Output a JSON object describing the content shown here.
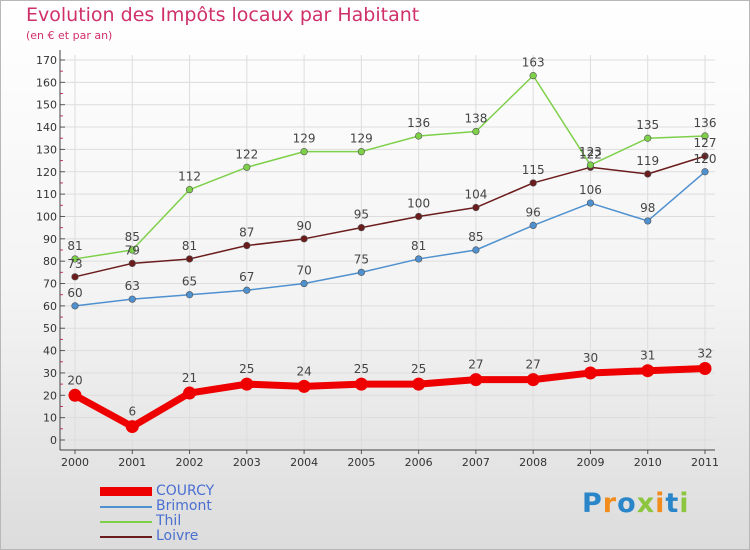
{
  "chart_data": {
    "type": "line",
    "title": "Evolution des Impôts locaux par Habitant",
    "subtitle": "(en € et par an)",
    "categories": [
      "2000",
      "2001",
      "2002",
      "2003",
      "2004",
      "2005",
      "2006",
      "2007",
      "2008",
      "2009",
      "2010",
      "2011"
    ],
    "ylim": [
      0,
      170
    ],
    "yticks": [
      0,
      10,
      20,
      30,
      40,
      50,
      60,
      70,
      80,
      90,
      100,
      110,
      120,
      130,
      140,
      150,
      160,
      170
    ],
    "grid": true,
    "legend_position": "bottom-left",
    "series": [
      {
        "name": "COURCY",
        "color": "#ee0000",
        "values": [
          20,
          6,
          21,
          25,
          24,
          25,
          25,
          27,
          27,
          30,
          31,
          32
        ]
      },
      {
        "name": "Brimont",
        "color": "#4f90cf",
        "values": [
          60,
          63,
          65,
          67,
          70,
          75,
          81,
          85,
          96,
          106,
          98,
          120
        ]
      },
      {
        "name": "Thil",
        "color": "#7ed04a",
        "values": [
          81,
          85,
          112,
          122,
          129,
          129,
          136,
          138,
          163,
          123,
          135,
          136
        ]
      },
      {
        "name": "Loivre",
        "color": "#6b1c1c",
        "values": [
          73,
          79,
          81,
          87,
          90,
          95,
          100,
          104,
          115,
          122,
          119,
          127
        ]
      }
    ]
  },
  "logo": {
    "text": "Proxiti",
    "colors": [
      "#2a86c8",
      "#f28c1c",
      "#2a86c8",
      "#8cc63e",
      "#f28c1c",
      "#2a86c8",
      "#8cc63e"
    ]
  }
}
